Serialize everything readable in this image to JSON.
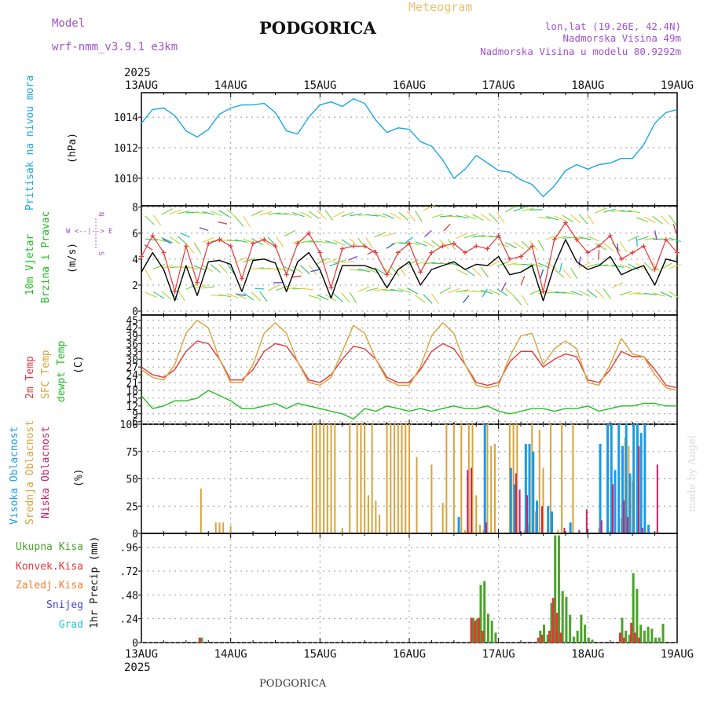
{
  "header": {
    "model_label": "Model",
    "model_name": "wrf-nmm_v3.9.1  e3km",
    "city": "PODGORICA",
    "title": "Meteogram",
    "lonlat": "lon,lat (19.26E, 42.4N)",
    "elevation": "Nadmorska Visina 49m",
    "model_elevation": "Nadmorska Visina u modelu 80.9292m",
    "year_top": "2025",
    "year_bottom": "2025",
    "footer_city": "PODGORICA",
    "credit": "made by Angel"
  },
  "colors": {
    "pressure": "#1aa7e6",
    "wind_speed": "#000000",
    "wind_gust": "#e43838",
    "temp2m": "#e43838",
    "sfc_temp": "#d8a23a",
    "dewpoint": "#22bb22",
    "cloud_high": "#1a9be6",
    "cloud_mid": "#d8a23a",
    "cloud_low": "#cc1f6a",
    "precip_total": "#4aa32a",
    "precip_conv": "#e43838",
    "precip_frozen": "#f08030",
    "snow": "#4444dd",
    "hail": "#22cccc",
    "compass": "#b050d0",
    "title": "#e8c070",
    "meta": "#a050d0"
  },
  "dates": [
    "13AUG",
    "14AUG",
    "15AUG",
    "16AUG",
    "17AUG",
    "18AUG",
    "19AUG"
  ],
  "chart_data": [
    {
      "type": "line",
      "panel": "pressure",
      "ylabel_1": "Pritisak na nivou mora",
      "ylabel_2": "(hPa)",
      "ylim": [
        1008.2,
        1015.6
      ],
      "yticks": [
        1010,
        1012,
        1014
      ],
      "x_hours": [
        0,
        3,
        6,
        9,
        12,
        15,
        18,
        21,
        24,
        27,
        30,
        33,
        36,
        39,
        42,
        45,
        48,
        51,
        54,
        57,
        60,
        63,
        66,
        69,
        72,
        75,
        78,
        81,
        84,
        87,
        90,
        93,
        96,
        99,
        102,
        105,
        108,
        111,
        114,
        117,
        120,
        123,
        126,
        129,
        132,
        135,
        138,
        141,
        144
      ],
      "values": [
        1013.6,
        1014.5,
        1014.6,
        1014.1,
        1013.1,
        1012.7,
        1013.2,
        1014.2,
        1014.6,
        1014.8,
        1014.8,
        1014.9,
        1014.3,
        1013.1,
        1012.9,
        1014.0,
        1014.8,
        1015.0,
        1014.7,
        1015.2,
        1014.9,
        1013.8,
        1013.0,
        1013.3,
        1013.2,
        1012.4,
        1012.1,
        1011.2,
        1010.0,
        1010.6,
        1011.5,
        1011.0,
        1010.5,
        1010.4,
        1009.9,
        1009.6,
        1008.8,
        1009.5,
        1010.5,
        1010.9,
        1010.6,
        1010.9,
        1011.0,
        1011.3,
        1011.3,
        1012.2,
        1013.6,
        1014.3,
        1014.5
      ]
    },
    {
      "type": "line",
      "panel": "wind",
      "ylabel_1": "10m Vjetar",
      "ylabel_2": "Brzina i Pravac",
      "ylabel_3": "(m/s)",
      "compass_label": "W <--|--> E",
      "compass_n": "N",
      "compass_s": "S",
      "ylim": [
        -0.3,
        8.1
      ],
      "yticks": [
        0,
        2,
        4,
        6,
        8
      ],
      "x_hours": [
        0,
        3,
        6,
        9,
        12,
        15,
        18,
        21,
        24,
        27,
        30,
        33,
        36,
        39,
        42,
        45,
        48,
        51,
        54,
        57,
        60,
        63,
        66,
        69,
        72,
        75,
        78,
        81,
        84,
        87,
        90,
        93,
        96,
        99,
        102,
        105,
        108,
        111,
        114,
        117,
        120,
        123,
        126,
        129,
        132,
        135,
        138,
        141,
        144
      ],
      "series": [
        {
          "name": "speed",
          "values": [
            3.0,
            4.5,
            3.2,
            0.8,
            3.5,
            1.2,
            3.8,
            3.9,
            3.6,
            1.5,
            3.9,
            4.0,
            3.7,
            1.5,
            3.8,
            4.5,
            3.2,
            1.0,
            3.5,
            3.5,
            3.5,
            3.2,
            1.8,
            3.2,
            3.8,
            2.0,
            3.2,
            3.5,
            3.8,
            3.2,
            3.6,
            3.5,
            4.2,
            2.8,
            3.0,
            3.5,
            0.8,
            3.5,
            5.5,
            3.8,
            3.2,
            3.5,
            4.2,
            2.8,
            3.2,
            3.5,
            2.0,
            4.0,
            3.8
          ]
        },
        {
          "name": "gust",
          "values": [
            4.2,
            5.8,
            4.5,
            1.5,
            5.0,
            2.2,
            5.2,
            5.5,
            5.0,
            2.5,
            5.2,
            5.5,
            5.0,
            2.8,
            5.2,
            6.0,
            4.5,
            1.8,
            4.8,
            5.0,
            5.0,
            4.5,
            2.8,
            4.5,
            5.2,
            3.0,
            4.5,
            5.0,
            5.2,
            4.5,
            5.0,
            4.8,
            5.8,
            4.0,
            4.2,
            5.0,
            1.5,
            5.5,
            6.8,
            5.5,
            4.5,
            5.0,
            5.8,
            4.0,
            4.5,
            5.0,
            3.2,
            5.5,
            4.5
          ]
        }
      ],
      "barb_labels": [
        "1",
        "2"
      ]
    },
    {
      "type": "line",
      "panel": "temperature",
      "ylabel_1": "2m Temp",
      "ylabel_2": "SFC Temp",
      "ylabel_3": "dewpt Temp",
      "ylabel_4": "(C)",
      "ylim": [
        5,
        47
      ],
      "yticks": [
        6,
        9,
        12,
        15,
        18,
        21,
        24,
        27,
        30,
        33,
        36,
        39,
        42,
        45
      ],
      "x_hours": [
        0,
        3,
        6,
        9,
        12,
        15,
        18,
        21,
        24,
        27,
        30,
        33,
        36,
        39,
        42,
        45,
        48,
        51,
        54,
        57,
        60,
        63,
        66,
        69,
        72,
        75,
        78,
        81,
        84,
        87,
        90,
        93,
        96,
        99,
        102,
        105,
        108,
        111,
        114,
        117,
        120,
        123,
        126,
        129,
        132,
        135,
        138,
        141,
        144
      ],
      "series": [
        {
          "name": "2m Temp",
          "values": [
            27,
            24,
            23,
            26,
            33,
            37,
            36,
            30,
            22,
            22,
            26,
            33,
            36,
            35,
            29,
            22,
            21,
            24,
            30,
            35,
            34,
            30,
            23,
            21,
            21,
            26,
            33,
            36,
            34,
            28,
            21,
            20,
            21,
            29,
            33,
            33,
            27,
            30,
            32,
            31,
            22,
            21,
            26,
            33,
            31,
            31,
            26,
            20,
            19
          ]
        },
        {
          "name": "SFC Temp",
          "values": [
            26,
            23,
            22,
            28,
            40,
            45,
            42,
            30,
            21,
            21,
            28,
            40,
            44,
            40,
            29,
            21,
            20,
            23,
            33,
            43,
            40,
            30,
            22,
            20,
            20,
            27,
            39,
            44,
            40,
            28,
            20,
            19,
            20,
            31,
            39,
            40,
            28,
            34,
            37,
            34,
            21,
            20,
            28,
            38,
            32,
            31,
            24,
            19,
            18
          ]
        },
        {
          "name": "dewpt Temp",
          "values": [
            16,
            11,
            12,
            14,
            14,
            15,
            18,
            16,
            14,
            11,
            11,
            12,
            13,
            11,
            13,
            12,
            11,
            10,
            9,
            7,
            11,
            10,
            12,
            11,
            10,
            11,
            10,
            11,
            12,
            11,
            11,
            12,
            10,
            9,
            10,
            11,
            11,
            10,
            11,
            11,
            12,
            10,
            11,
            12,
            12,
            13,
            13,
            12,
            12
          ]
        }
      ]
    },
    {
      "type": "bar",
      "panel": "clouds",
      "ylabel_1": "Visoka Oblacnost",
      "ylabel_2": "Srednja Oblacnost",
      "ylabel_3": "Niska Oblacnost",
      "ylabel_4": "(%)",
      "ylim": [
        0,
        100
      ],
      "yticks": [
        0,
        25,
        50,
        75,
        100
      ],
      "series": [
        {
          "name": "Srednja Oblacnost",
          "x_hours": [
            16,
            20,
            21,
            22,
            24,
            46,
            47,
            48,
            49,
            50,
            51,
            52,
            54,
            56,
            58,
            59,
            60,
            61,
            62,
            63,
            64,
            66,
            67,
            68,
            69,
            70,
            71,
            72,
            74,
            78,
            81,
            82,
            84,
            86,
            87,
            88,
            89,
            90,
            91,
            92,
            93,
            94,
            95,
            99,
            100,
            101,
            103,
            104,
            105,
            106,
            107,
            108,
            110,
            112,
            113,
            116,
            123,
            129,
            130,
            131,
            132
          ],
          "values": [
            41,
            10,
            10,
            10,
            7,
            100,
            100,
            100,
            100,
            100,
            100,
            100,
            5,
            100,
            100,
            100,
            100,
            35,
            100,
            30,
            17,
            100,
            100,
            100,
            100,
            100,
            100,
            100,
            70,
            63,
            28,
            100,
            100,
            100,
            3,
            100,
            100,
            35,
            8,
            3,
            100,
            80,
            82,
            100,
            100,
            100,
            3,
            8,
            100,
            20,
            95,
            60,
            100,
            3,
            100,
            100,
            5,
            14,
            88,
            80,
            48
          ]
        },
        {
          "name": "Visoka Oblacnost",
          "x_hours": [
            85,
            92,
            99,
            100,
            103,
            104,
            105,
            106,
            109,
            110,
            115,
            123,
            125,
            126,
            127,
            128,
            129,
            130,
            131,
            132,
            133,
            134,
            135,
            136
          ],
          "values": [
            15,
            100,
            60,
            45,
            82,
            82,
            75,
            30,
            25,
            20,
            10,
            82,
            100,
            100,
            58,
            100,
            80,
            100,
            55,
            100,
            100,
            92,
            100,
            8
          ]
        },
        {
          "name": "Niska Oblacnost",
          "x_hours": [
            88,
            89,
            93,
            101,
            102,
            104,
            108,
            114,
            118,
            120,
            124,
            127,
            130,
            131,
            134,
            135,
            139
          ],
          "values": [
            58,
            60,
            10,
            55,
            40,
            35,
            25,
            5,
            3,
            22,
            12,
            45,
            30,
            15,
            80,
            5,
            63
          ]
        }
      ]
    },
    {
      "type": "bar",
      "panel": "precipitation",
      "ylabel_1": "Ukupna Kisa",
      "ylabel_2": "Konvek.Kisa",
      "ylabel_3": "Zaledj.Kisa",
      "ylabel_4": "Snijeg",
      "ylabel_5": "Grad",
      "ylabel_6": "1hr Precip (mm)",
      "ylim": [
        0,
        1.1
      ],
      "yticks": [
        0,
        0.24,
        0.48,
        0.72,
        0.96
      ],
      "series": [
        {
          "name": "Ukupna Kisa",
          "x_hours": [
            16,
            89,
            90,
            91,
            92,
            93,
            94,
            95,
            107,
            108,
            109,
            110,
            111,
            112,
            113,
            114,
            115,
            116,
            117,
            118,
            119,
            120,
            121,
            129,
            130,
            131,
            132,
            133,
            134,
            135,
            136,
            137,
            138,
            139,
            140
          ],
          "values": [
            0.05,
            0.25,
            0.24,
            0.58,
            0.62,
            0.29,
            0.22,
            0.1,
            0.12,
            0.18,
            0.08,
            0.4,
            1.08,
            1.08,
            0.52,
            0.46,
            0.28,
            0.06,
            0.12,
            0.28,
            0.18,
            0.05,
            0.03,
            0.25,
            0.12,
            0.08,
            0.7,
            0.54,
            0.18,
            0.12,
            0.16,
            0.14,
            0.05,
            0.05,
            0.19
          ]
        },
        {
          "name": "Konvek.Kisa",
          "x_hours": [
            16,
            89,
            90,
            91,
            92,
            107,
            108,
            110,
            111,
            112,
            113,
            129,
            130,
            132,
            133,
            134
          ],
          "values": [
            0.05,
            0.25,
            0.22,
            0.25,
            0.12,
            0.05,
            0.08,
            0.12,
            0.45,
            0.3,
            0.1,
            0.1,
            0.05,
            0.2,
            0.1,
            0.05
          ]
        }
      ]
    }
  ]
}
